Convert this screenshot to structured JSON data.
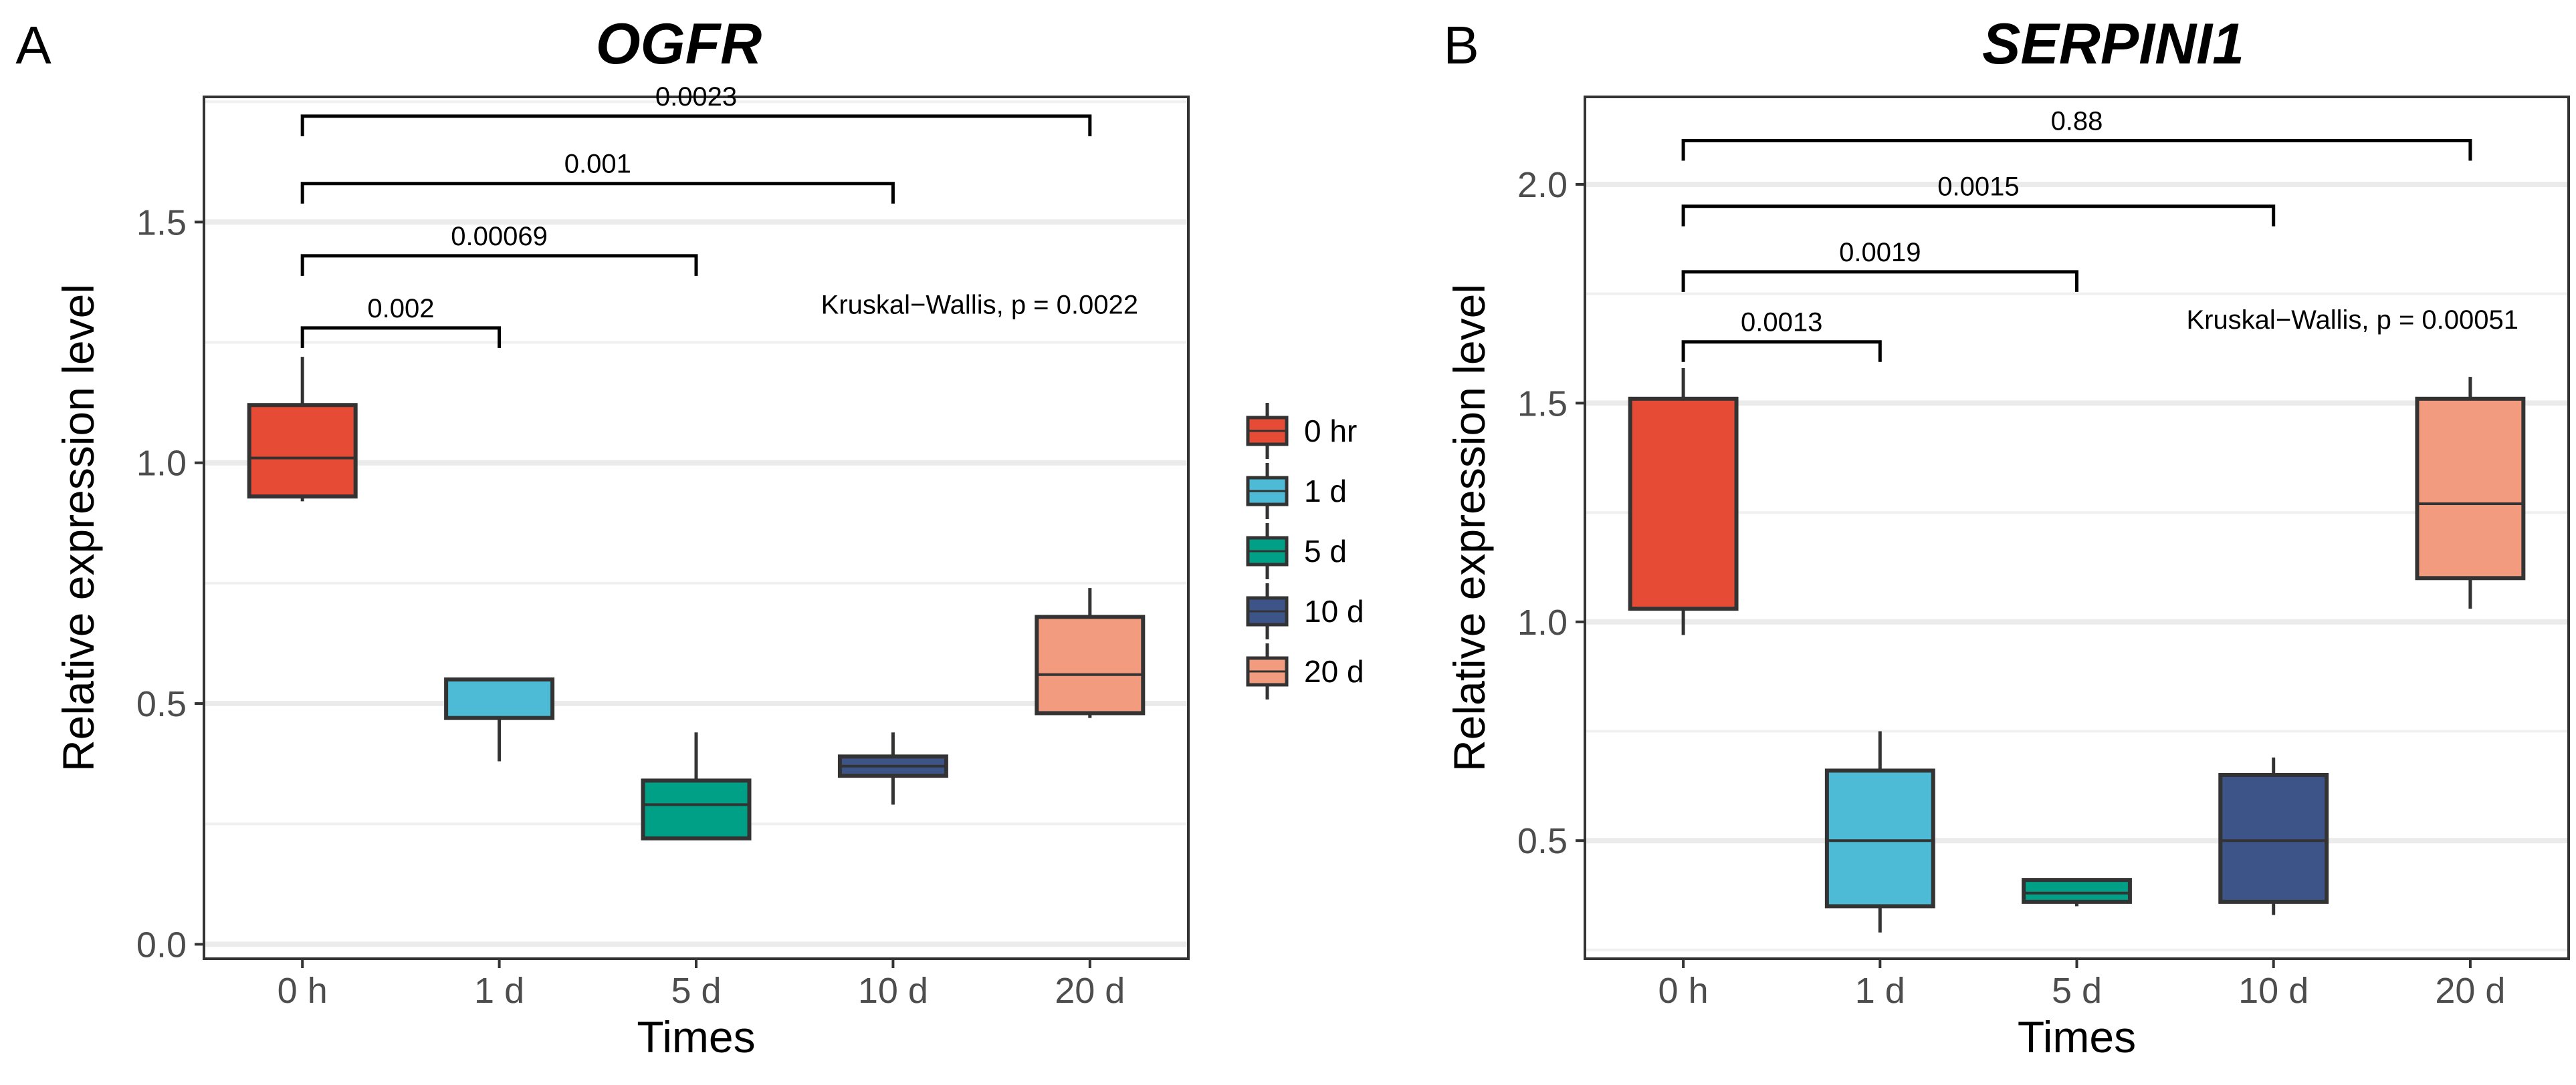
{
  "legend": {
    "items": [
      {
        "label": "0 hr",
        "color": "#E64B35"
      },
      {
        "label": "1 d",
        "color": "#4DBBD5"
      },
      {
        "label": "5 d",
        "color": "#00A087"
      },
      {
        "label": "10 d",
        "color": "#3C5488"
      },
      {
        "label": "20 d",
        "color": "#F39B7F"
      }
    ]
  },
  "chart_data": [
    {
      "panel": "A",
      "type": "box",
      "title": "OGFR",
      "xlabel": "Times",
      "ylabel": "Relative expression level",
      "ylim": [
        -0.03,
        1.76
      ],
      "yticks": [
        0.0,
        0.5,
        1.0,
        1.5
      ],
      "ytick_labels": [
        "0.0",
        "0.5",
        "1.0",
        "1.5"
      ],
      "grid": true,
      "categories": [
        "0 h",
        "1 d",
        "5 d",
        "10 d",
        "20 d"
      ],
      "colors": [
        "#E64B35",
        "#4DBBD5",
        "#00A087",
        "#3C5488",
        "#F39B7F"
      ],
      "boxes": [
        {
          "min": 0.92,
          "q1": 0.93,
          "median": 1.01,
          "q3": 1.12,
          "max": 1.22
        },
        {
          "min": 0.38,
          "q1": 0.47,
          "median": 0.47,
          "q3": 0.55,
          "max": 0.55
        },
        {
          "min": 0.22,
          "q1": 0.22,
          "median": 0.29,
          "q3": 0.34,
          "max": 0.44
        },
        {
          "min": 0.29,
          "q1": 0.35,
          "median": 0.37,
          "q3": 0.39,
          "max": 0.44
        },
        {
          "min": 0.47,
          "q1": 0.48,
          "median": 0.56,
          "q3": 0.68,
          "max": 0.74
        }
      ],
      "comparisons": [
        {
          "from": "0 h",
          "to": "1 d",
          "y": 1.28,
          "label": "0.002"
        },
        {
          "from": "0 h",
          "to": "5 d",
          "y": 1.43,
          "label": "0.00069"
        },
        {
          "from": "0 h",
          "to": "10 d",
          "y": 1.58,
          "label": "0.001"
        },
        {
          "from": "0 h",
          "to": "20 d",
          "y": 1.72,
          "label": "0.0023"
        }
      ],
      "test_label": "Kruskal−Wallis, p = 0.0022",
      "test_label_y": 1.31
    },
    {
      "panel": "B",
      "type": "box",
      "title": "SERPINI1",
      "xlabel": "Times",
      "ylabel": "Relative expression level",
      "ylim": [
        0.23,
        2.2
      ],
      "yticks": [
        0.5,
        1.0,
        1.5,
        2.0
      ],
      "ytick_labels": [
        "0.5",
        "1.0",
        "1.5",
        "2.0"
      ],
      "grid": true,
      "categories": [
        "0 h",
        "1 d",
        "5 d",
        "10 d",
        "20 d"
      ],
      "colors": [
        "#E64B35",
        "#4DBBD5",
        "#00A087",
        "#3C5488",
        "#F39B7F"
      ],
      "boxes": [
        {
          "min": 0.97,
          "q1": 1.03,
          "median": 1.03,
          "q3": 1.51,
          "max": 1.58
        },
        {
          "min": 0.29,
          "q1": 0.35,
          "median": 0.5,
          "q3": 0.66,
          "max": 0.75
        },
        {
          "min": 0.35,
          "q1": 0.36,
          "median": 0.38,
          "q3": 0.41,
          "max": 0.41
        },
        {
          "min": 0.33,
          "q1": 0.36,
          "median": 0.5,
          "q3": 0.65,
          "max": 0.69
        },
        {
          "min": 1.03,
          "q1": 1.1,
          "median": 1.27,
          "q3": 1.51,
          "max": 1.56
        }
      ],
      "comparisons": [
        {
          "from": "0 h",
          "to": "1 d",
          "y": 1.64,
          "label": "0.0013"
        },
        {
          "from": "0 h",
          "to": "5 d",
          "y": 1.8,
          "label": "0.0019"
        },
        {
          "from": "0 h",
          "to": "10 d",
          "y": 1.95,
          "label": "0.0015"
        },
        {
          "from": "0 h",
          "to": "20 d",
          "y": 2.1,
          "label": "0.88"
        }
      ],
      "test_label": "Kruskal−Wallis, p = 0.00051",
      "test_label_y": 1.67
    }
  ]
}
